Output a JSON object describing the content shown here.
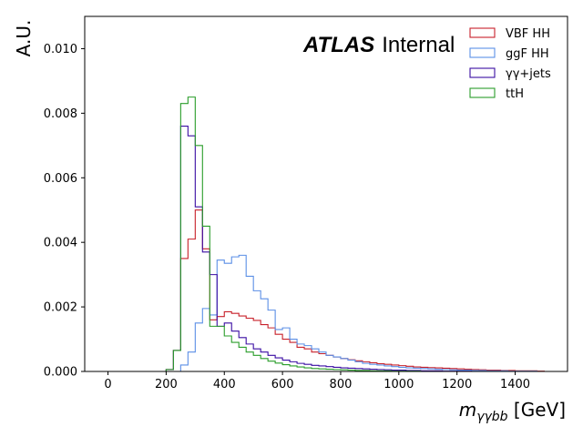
{
  "chart_data": {
    "type": "histogram",
    "title": "",
    "atlas_label": {
      "main": "ATLAS",
      "sub": "Internal"
    },
    "xlabel": {
      "var": "m",
      "sub": "γγbb",
      "unit": " [GeV]"
    },
    "ylabel": "A.U.",
    "xlim": [
      -80,
      1580
    ],
    "ylim": [
      0,
      0.011
    ],
    "bin_width": 25,
    "x_start": 200,
    "xticks": [
      0,
      200,
      400,
      600,
      800,
      1000,
      1200,
      1400
    ],
    "yticks": [
      "0.000",
      "0.002",
      "0.004",
      "0.006",
      "0.008",
      "0.010"
    ],
    "grid": false,
    "legend_position": "top-right",
    "series": [
      {
        "name": "VBF HH",
        "color": "#c8202a",
        "values": [
          6e-05,
          0.00065,
          0.0035,
          0.0041,
          0.005,
          0.0038,
          0.0016,
          0.0017,
          0.00185,
          0.0018,
          0.00172,
          0.00165,
          0.00158,
          0.00145,
          0.00135,
          0.00115,
          0.001,
          0.0009,
          0.00075,
          0.0007,
          0.0006,
          0.00055,
          0.0005,
          0.00045,
          0.0004,
          0.00036,
          0.00033,
          0.0003,
          0.00027,
          0.00024,
          0.00022,
          0.0002,
          0.00018,
          0.00016,
          0.00014,
          0.00013,
          0.00012,
          0.00011,
          0.0001,
          9e-05,
          8e-05,
          7e-05,
          6e-05,
          5e-05,
          4e-05,
          4e-05,
          3e-05,
          3e-05,
          2e-05,
          2e-05,
          2e-05,
          1e-05
        ]
      },
      {
        "name": "ggF HH",
        "color": "#5b8fe6",
        "values": [
          0.0,
          0.0,
          0.0002,
          0.0006,
          0.0015,
          0.00195,
          0.00175,
          0.00345,
          0.00335,
          0.00355,
          0.0036,
          0.00295,
          0.0025,
          0.00225,
          0.0019,
          0.0013,
          0.00135,
          0.001,
          0.00085,
          0.0008,
          0.0007,
          0.0006,
          0.0005,
          0.00045,
          0.0004,
          0.00035,
          0.0003,
          0.00025,
          0.00022,
          0.0002,
          0.00017,
          0.00015,
          0.00013,
          0.00011,
          0.0001,
          9e-05,
          8e-05,
          7e-05,
          6e-05,
          5e-05,
          4e-05,
          4e-05,
          3e-05,
          3e-05,
          2e-05,
          2e-05,
          2e-05,
          1e-05,
          1e-05,
          1e-05,
          1e-05,
          0.0
        ]
      },
      {
        "name": "γγ+jets",
        "color": "#3a0ca3",
        "values": [
          6e-05,
          0.00065,
          0.0076,
          0.0073,
          0.0051,
          0.0037,
          0.003,
          0.0014,
          0.0015,
          0.00125,
          0.00105,
          0.00085,
          0.0007,
          0.0006,
          0.0005,
          0.00042,
          0.00035,
          0.0003,
          0.00025,
          0.00022,
          0.00019,
          0.00017,
          0.00015,
          0.00013,
          0.00011,
          0.0001,
          9e-05,
          8e-05,
          7e-05,
          6e-05,
          5e-05,
          4e-05,
          4e-05,
          3e-05,
          3e-05,
          2e-05,
          2e-05,
          2e-05,
          1e-05,
          1e-05,
          1e-05,
          1e-05,
          0.0,
          0.0,
          0.0,
          0.0,
          0.0,
          0.0,
          0.0,
          0.0,
          0.0,
          0.0
        ]
      },
      {
        "name": "ttH",
        "color": "#2a9d2a",
        "values": [
          6e-05,
          0.00065,
          0.0083,
          0.0085,
          0.007,
          0.0045,
          0.0014,
          0.0014,
          0.0011,
          0.0009,
          0.00075,
          0.0006,
          0.0005,
          0.0004,
          0.00032,
          0.00026,
          0.00021,
          0.00017,
          0.00014,
          0.00011,
          9e-05,
          8e-05,
          7e-05,
          6e-05,
          5e-05,
          4e-05,
          3e-05,
          3e-05,
          2e-05,
          2e-05,
          2e-05,
          1e-05,
          1e-05,
          1e-05,
          1e-05,
          0.0,
          0.0,
          0.0,
          0.0,
          0.0,
          0.0,
          0.0,
          0.0,
          0.0,
          0.0,
          0.0,
          0.0,
          0.0,
          0.0,
          0.0,
          0.0,
          0.0
        ]
      }
    ]
  }
}
